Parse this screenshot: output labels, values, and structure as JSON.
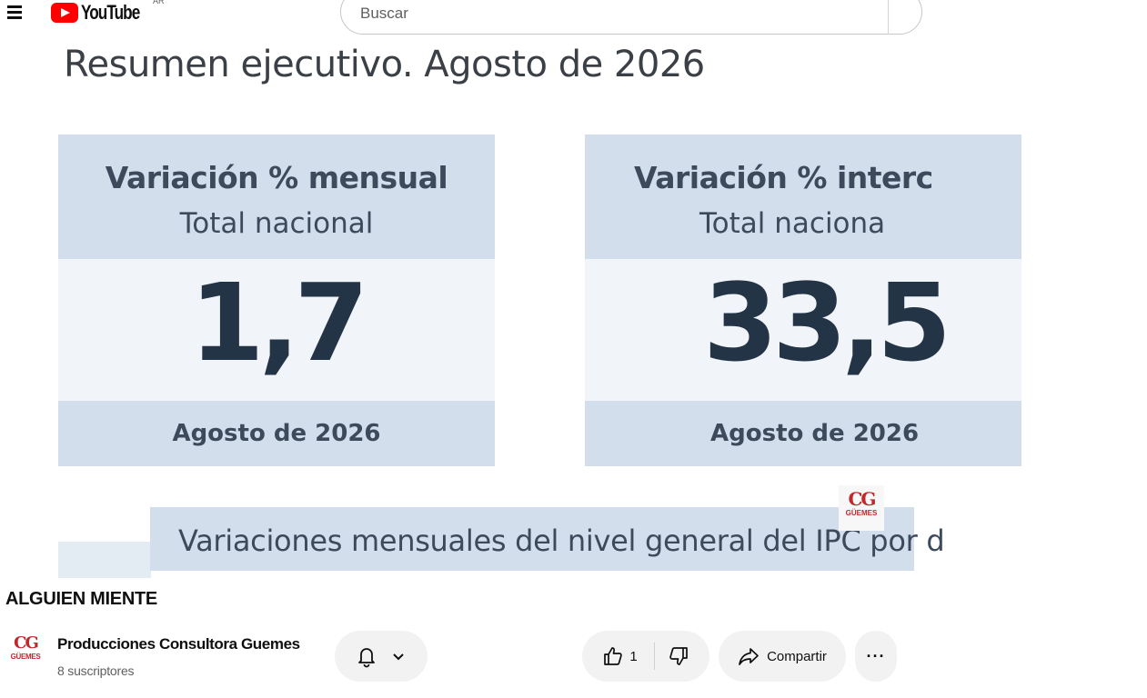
{
  "header": {
    "logo_text": "YouTube",
    "country_code": "AR",
    "search": {
      "placeholder": "Buscar",
      "value": ""
    }
  },
  "slide": {
    "title": "Resumen ejecutivo. Agosto de 2026",
    "card_monthly": {
      "title": "Variación % mensual",
      "subtitle": "Total nacional",
      "value": "1,7",
      "date": "Agosto de 2026"
    },
    "card_yearly": {
      "title": "Variación % interc",
      "subtitle": "Total naciona",
      "value": "33,5",
      "date": "Agosto de 2026"
    },
    "banner_text": "Variaciones mensuales del nivel general del IPC por d",
    "watermark": {
      "logo": "CG",
      "text": "GÜEMES"
    }
  },
  "video": {
    "title": "ALGUIEN MIENTE",
    "channel": {
      "avatar_logo": "CG",
      "avatar_text": "GÜEMES",
      "name": "Producciones Consultora Guemes",
      "subscribers": "8 suscriptores"
    },
    "like_count": "1",
    "share_label": "Compartir"
  },
  "icons": [
    "menu-icon",
    "youtube-logo-icon",
    "bell-icon",
    "chevron-down-icon",
    "thumbs-up-icon",
    "thumbs-down-icon",
    "share-icon",
    "more-icon"
  ],
  "colors": {
    "brand_red": "#ff0000",
    "card_header": "#d2deeb",
    "card_body": "#f1f4f8",
    "value_text": "#243447",
    "pill_bg": "#f2f2f2"
  }
}
